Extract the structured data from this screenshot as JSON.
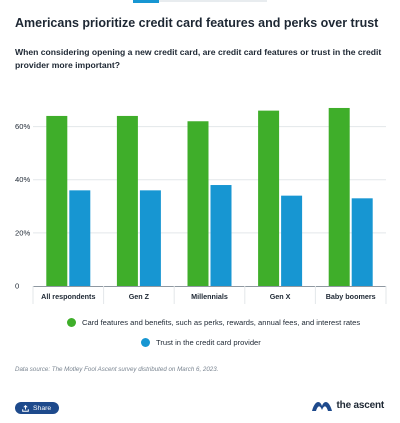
{
  "title": "Americans prioritize credit card features and perks over trust",
  "subtitle": "When considering opening a new credit card, are credit card features or trust in the credit provider more important?",
  "colors": {
    "features": "#3fae2a",
    "trust": "#1796d2",
    "brand": "#1e4a8c",
    "grid": "#e3e7ea",
    "text": "#1d2733"
  },
  "chart_data": {
    "type": "bar",
    "categories": [
      "All respondents",
      "Gen Z",
      "Millennials",
      "Gen X",
      "Baby boomers"
    ],
    "series": [
      {
        "name": "Card features and benefits, such as perks, rewards, annual fees, and interest rates",
        "values": [
          64,
          64,
          62,
          66,
          67
        ]
      },
      {
        "name": "Trust in the credit card provider",
        "values": [
          36,
          36,
          38,
          34,
          33
        ]
      }
    ],
    "ylim": [
      0,
      70
    ],
    "yticks": [
      0,
      20,
      40,
      60
    ],
    "ytick_labels": [
      "0",
      "20%",
      "40%",
      "60%"
    ],
    "grid": true,
    "legend_position": "bottom"
  },
  "source": "Data source: The Motley Fool Ascent survey distributed on March 6, 2023.",
  "share_label": "Share",
  "brand_name": "the ascent"
}
